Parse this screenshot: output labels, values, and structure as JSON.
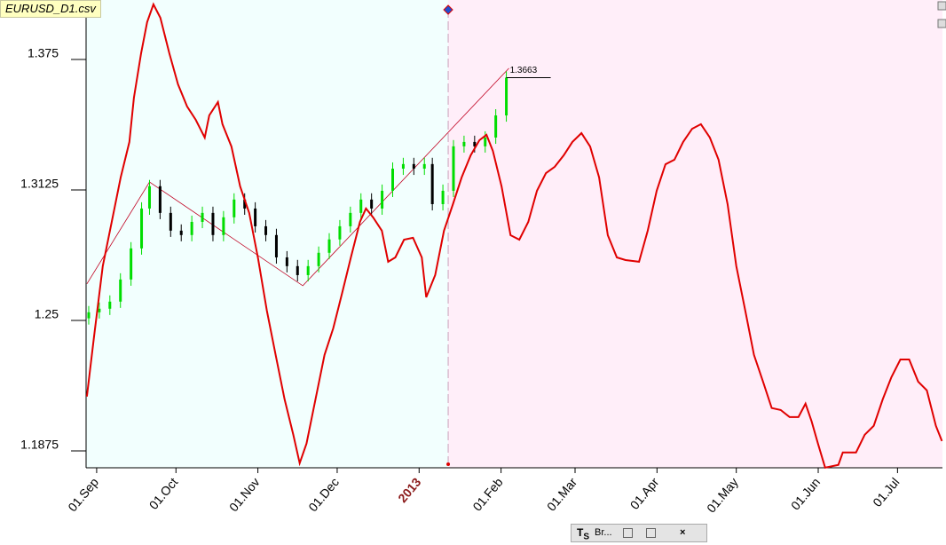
{
  "window": {
    "title": "EURUSD_D1.csv",
    "taskbar_label": "Br..."
  },
  "chart_data": {
    "type": "candlestick",
    "xlim": [
      -4,
      320
    ],
    "ylim": [
      1.1794,
      1.4035
    ],
    "yticks": [
      1.1875,
      1.25,
      1.3125,
      1.375
    ],
    "xticks": [
      {
        "value": 0,
        "label": "01.Sep"
      },
      {
        "value": 30,
        "label": "01.Oct"
      },
      {
        "value": 61,
        "label": "01.Nov"
      },
      {
        "value": 91,
        "label": "01.Dec"
      },
      {
        "value": 122,
        "label": "2013"
      },
      {
        "value": 153,
        "label": "01.Feb"
      },
      {
        "value": 181,
        "label": "01.Mar"
      },
      {
        "value": 212,
        "label": "01.Apr"
      },
      {
        "value": 242,
        "label": "01.May"
      },
      {
        "value": 273,
        "label": "01.Jun"
      },
      {
        "value": 303,
        "label": "01.Jul"
      }
    ],
    "year_tick_color": "#8b1a1a",
    "up_color": "#00dd00",
    "down_color": "#000000",
    "x": [
      -3,
      1,
      5,
      9,
      13,
      17,
      20,
      24,
      28,
      32,
      36,
      40,
      44,
      48,
      52,
      56,
      60,
      64,
      68,
      72,
      76,
      80,
      84,
      88,
      92,
      96,
      100,
      104,
      108,
      112,
      116,
      120,
      124,
      127,
      131,
      135,
      139,
      143,
      147,
      151,
      155
    ],
    "open": [
      1.251,
      1.2539,
      1.2556,
      1.259,
      1.2696,
      1.2845,
      1.3036,
      1.3143,
      1.3015,
      1.293,
      1.2909,
      1.2972,
      1.3015,
      1.2909,
      1.2994,
      1.3079,
      1.3036,
      1.2951,
      1.2909,
      1.2802,
      1.276,
      1.2717,
      1.276,
      1.2824,
      1.2888,
      1.2951,
      1.3015,
      1.3079,
      1.3036,
      1.3121,
      1.3227,
      1.3249,
      1.3227,
      1.3249,
      1.3057,
      1.3121,
      1.3334,
      1.3355,
      1.3334,
      1.3376,
      1.3482
    ],
    "high": [
      1.2569,
      1.2586,
      1.262,
      1.2726,
      1.2875,
      1.3066,
      1.3173,
      1.3173,
      1.3045,
      1.296,
      1.3002,
      1.3045,
      1.3045,
      1.3024,
      1.3109,
      1.3109,
      1.3066,
      1.2981,
      1.2939,
      1.2832,
      1.279,
      1.279,
      1.2854,
      1.2918,
      1.2981,
      1.3045,
      1.3109,
      1.3109,
      1.3151,
      1.3257,
      1.3279,
      1.3279,
      1.3279,
      1.3279,
      1.3151,
      1.3364,
      1.3385,
      1.3385,
      1.3406,
      1.3512,
      1.3693
    ],
    "low": [
      1.248,
      1.2509,
      1.2526,
      1.256,
      1.2666,
      1.2815,
      1.3006,
      1.2985,
      1.29,
      1.2879,
      1.2879,
      1.2942,
      1.2879,
      1.2879,
      1.2964,
      1.3006,
      1.2921,
      1.2879,
      1.2772,
      1.273,
      1.2687,
      1.2687,
      1.273,
      1.2794,
      1.2858,
      1.2921,
      1.2985,
      1.3006,
      1.3006,
      1.3091,
      1.3197,
      1.3197,
      1.3197,
      1.3027,
      1.3027,
      1.3091,
      1.3304,
      1.3304,
      1.3304,
      1.3346,
      1.3452
    ],
    "close": [
      1.2539,
      1.2556,
      1.259,
      1.2696,
      1.2845,
      1.3036,
      1.3143,
      1.3015,
      1.293,
      1.2909,
      1.2972,
      1.3015,
      1.2909,
      1.2994,
      1.3079,
      1.3036,
      1.2951,
      1.2909,
      1.2802,
      1.276,
      1.2717,
      1.276,
      1.2824,
      1.2888,
      1.2951,
      1.3015,
      1.3079,
      1.3036,
      1.3121,
      1.3227,
      1.3249,
      1.3227,
      1.3249,
      1.3057,
      1.3121,
      1.3334,
      1.3355,
      1.3334,
      1.3376,
      1.3482,
      1.3663
    ],
    "last_price": 1.3663,
    "divider_x": 133,
    "background": {
      "past": "#f2fffe",
      "future": "#ffeef9"
    },
    "forecast": {
      "color": "#e00000",
      "x": [
        -3.7,
        -1.0,
        2.3,
        5.7,
        9.1,
        12.4,
        14.1,
        16.8,
        19.1,
        21.5,
        24.1,
        27.5,
        30.8,
        34.2,
        37.5,
        40.9,
        42.6,
        45.9,
        47.6,
        51.0,
        54.3,
        57.7,
        61.0,
        64.4,
        67.7,
        71.1,
        74.4,
        76.8,
        79.4,
        82.8,
        86.2,
        89.5,
        92.9,
        96.2,
        99.6,
        101.9,
        104.6,
        107.9,
        110.3,
        113.0,
        116.3,
        119.7,
        123.0,
        124.7,
        128.1,
        131.4,
        134.8,
        138.1,
        141.5,
        144.8,
        147.5,
        149.9,
        153.2,
        156.6,
        159.9,
        163.3,
        166.6,
        170.0,
        173.3,
        176.7,
        180.0,
        183.4,
        186.7,
        190.1,
        193.4,
        196.8,
        200.1,
        205.2,
        208.5,
        211.9,
        215.2,
        218.6,
        221.9,
        225.3,
        228.6,
        232.0,
        235.3,
        238.7,
        242.0,
        245.4,
        248.7,
        252.1,
        255.4,
        258.8,
        262.2,
        265.5,
        268.2,
        270.5,
        272.9,
        275.6,
        280.6,
        282.3,
        287.3,
        290.6,
        294.0,
        297.4,
        300.7,
        304.1,
        307.4,
        310.8,
        314.1,
        317.5,
        319.8
      ],
      "values": [
        1.2135,
        1.242,
        1.276,
        1.2972,
        1.3185,
        1.3355,
        1.3567,
        1.378,
        1.3929,
        1.4014,
        1.395,
        1.378,
        1.3631,
        1.3525,
        1.3461,
        1.3376,
        1.3482,
        1.3546,
        1.344,
        1.3333,
        1.3142,
        1.3015,
        1.2802,
        1.2547,
        1.2335,
        1.2122,
        1.1952,
        1.1816,
        1.191,
        1.2122,
        1.2335,
        1.2462,
        1.2632,
        1.2802,
        1.2972,
        1.3036,
        1.2993,
        1.293,
        1.2781,
        1.2802,
        1.2887,
        1.2896,
        1.2802,
        1.2611,
        1.2717,
        1.293,
        1.3057,
        1.3185,
        1.3291,
        1.3363,
        1.3389,
        1.3312,
        1.3142,
        1.2908,
        1.2887,
        1.2972,
        1.3121,
        1.3206,
        1.3236,
        1.3291,
        1.3355,
        1.3397,
        1.3333,
        1.3185,
        1.2908,
        1.2802,
        1.2789,
        1.2781,
        1.293,
        1.3121,
        1.3248,
        1.327,
        1.3355,
        1.3418,
        1.344,
        1.3376,
        1.327,
        1.3057,
        1.276,
        1.2547,
        1.2335,
        1.2207,
        1.208,
        1.2071,
        1.2037,
        1.2037,
        1.2101,
        1.2016,
        1.191,
        1.1795,
        1.1808,
        1.1867,
        1.1867,
        1.1952,
        1.1995,
        1.2122,
        1.2228,
        1.2313,
        1.2313,
        1.2207,
        1.2165,
        1.1995,
        1.1922
      ]
    },
    "zigzag": {
      "color": "#c00020",
      "x": [
        -3.7,
        20,
        78,
        156
      ],
      "values": [
        1.2675,
        1.3163,
        1.2666,
        1.3708
      ]
    }
  }
}
